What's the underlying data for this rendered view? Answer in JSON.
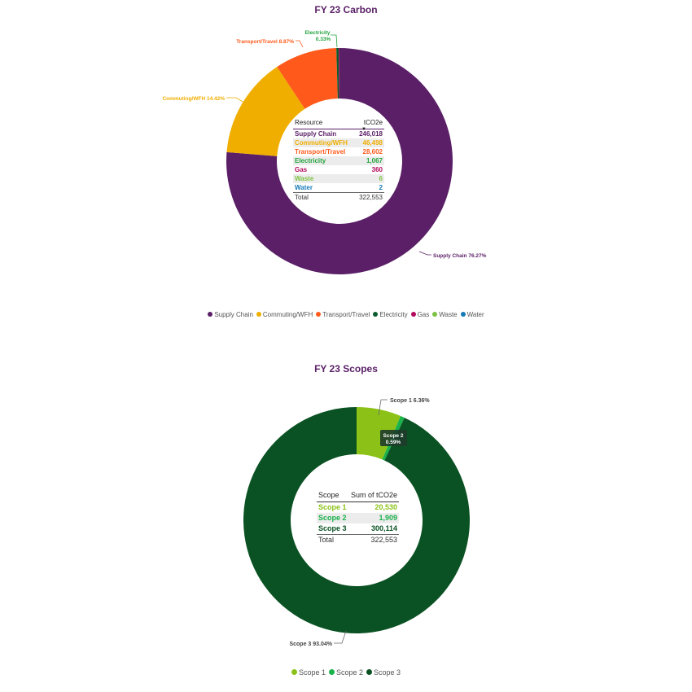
{
  "chart_data": [
    {
      "type": "pie",
      "title": "FY 23 Carbon",
      "categories": [
        "Supply Chain",
        "Commuting/WFH",
        "Transport/Travel",
        "Electricity",
        "Gas",
        "Waste",
        "Water"
      ],
      "values": [
        246018,
        46498,
        28602,
        1067,
        360,
        6,
        2
      ],
      "colors": [
        "#5a1f66",
        "#f0ae00",
        "#ff5a1c",
        "#0b5d2e",
        "#b3095c",
        "#7cc142",
        "#157ab7"
      ],
      "slice_labels": [
        {
          "text": "Supply Chain 76.27%",
          "color": "#5a1f66"
        },
        {
          "text": "Commuting/WFH 14.42%",
          "color": "#f0ae00"
        },
        {
          "text": "Transport/Travel 8.87%",
          "color": "#ff5a1c"
        },
        {
          "text": "Electricity",
          "text2": "0.33%",
          "color": "#22a33c"
        }
      ],
      "legend": [
        "Supply Chain",
        "Commuting/WFH",
        "Transport/Travel",
        "Electricity",
        "Gas",
        "Waste",
        "Water"
      ],
      "legend_placement": "bottom-center",
      "table": {
        "headers": [
          "Resource",
          "tCO2e"
        ],
        "sort_indicator": "▼",
        "rows": [
          {
            "label": "Supply Chain",
            "value": "246,018",
            "color": "#5a1f66"
          },
          {
            "label": "Commuting/WFH",
            "value": "46,498",
            "color": "#f0ae00"
          },
          {
            "label": "Transport/Travel",
            "value": "28,602",
            "color": "#ff5a1c"
          },
          {
            "label": "Electricity",
            "value": "1,067",
            "color": "#22a33c"
          },
          {
            "label": "Gas",
            "value": "360",
            "color": "#b3095c"
          },
          {
            "label": "Waste",
            "value": "6",
            "color": "#7cc142"
          },
          {
            "label": "Water",
            "value": "2",
            "color": "#157ab7"
          }
        ],
        "total": {
          "label": "Total",
          "value": "322,553"
        }
      }
    },
    {
      "type": "pie",
      "title": "FY 23 Scopes",
      "categories": [
        "Scope 1",
        "Scope 2",
        "Scope 3"
      ],
      "values": [
        20530,
        1909,
        300114
      ],
      "colors": [
        "#8cc218",
        "#19b24b",
        "#0a5223"
      ],
      "slice_labels": [
        {
          "text": "Scope 1 6.36%",
          "color": "#444"
        },
        {
          "text": "Scope 2",
          "text2": "0.59%",
          "color": "#ffffff"
        },
        {
          "text": "Scope 3 93.04%",
          "color": "#444"
        }
      ],
      "legend": [
        "Scope 1",
        "Scope 2",
        "Scope 3"
      ],
      "legend_placement": "bottom-center",
      "table": {
        "headers": [
          "Scope",
          "Sum of tCO2e"
        ],
        "rows": [
          {
            "label": "Scope 1",
            "value": "20,530",
            "color": "#8cc218"
          },
          {
            "label": "Scope 2",
            "value": "1,909",
            "color": "#19b24b"
          },
          {
            "label": "Scope 3",
            "value": "300,114",
            "color": "#0a5223"
          }
        ],
        "total": {
          "label": "Total",
          "value": "322,553"
        }
      }
    }
  ]
}
